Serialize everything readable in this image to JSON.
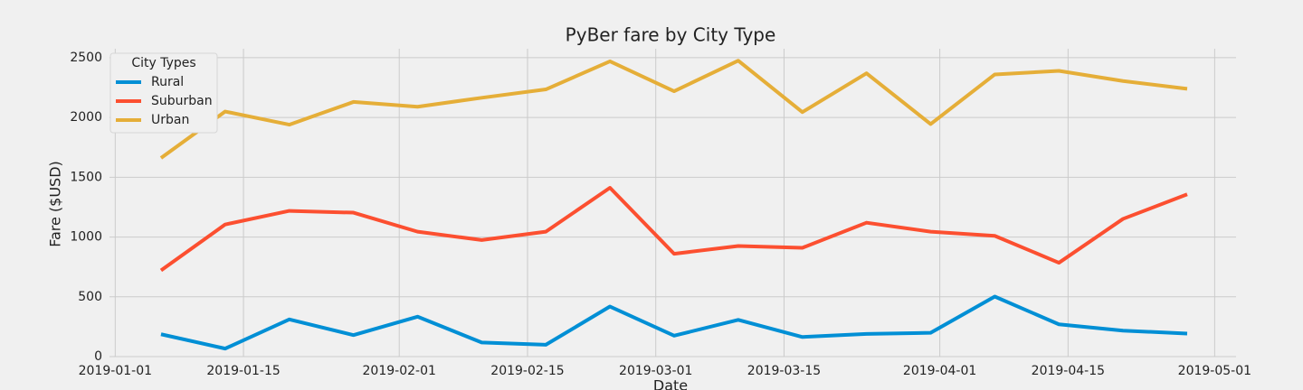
{
  "chart_data": {
    "type": "line",
    "title": "PyBer fare by City Type",
    "xlabel": "Date",
    "ylabel": "Fare ($USD)",
    "x": [
      "2019-01-06",
      "2019-01-13",
      "2019-01-20",
      "2019-01-27",
      "2019-02-03",
      "2019-02-10",
      "2019-02-17",
      "2019-02-24",
      "2019-03-03",
      "2019-03-10",
      "2019-03-17",
      "2019-03-24",
      "2019-03-31",
      "2019-04-07",
      "2019-04-14",
      "2019-04-21",
      "2019-04-28"
    ],
    "series": [
      {
        "name": "Rural",
        "color": "#008fd5",
        "values": [
          187,
          67,
          311,
          180,
          334,
          118,
          99,
          419,
          175,
          307,
          164,
          190,
          199,
          502,
          270,
          217,
          193
        ]
      },
      {
        "name": "Suburban",
        "color": "#fc4f30",
        "values": [
          721,
          1105,
          1219,
          1204,
          1045,
          975,
          1045,
          1412,
          860,
          925,
          910,
          1120,
          1045,
          1010,
          785,
          1152,
          1357
        ]
      },
      {
        "name": "Urban",
        "color": "#e5ae38",
        "values": [
          1661,
          2050,
          1940,
          2130,
          2090,
          2165,
          2235,
          2470,
          2220,
          2475,
          2045,
          2370,
          1945,
          2360,
          2390,
          2305,
          2240
        ]
      }
    ],
    "legend_title": "City Types",
    "legend": "upper left",
    "grid": true,
    "xlim": [
      "2018-12-31T09:00",
      "2019-05-03T08:00"
    ],
    "xticks": [
      "2019-01-01",
      "2019-01-15",
      "2019-02-01",
      "2019-02-15",
      "2019-03-01",
      "2019-03-15",
      "2019-04-01",
      "2019-04-15",
      "2019-05-01"
    ],
    "ylim": [
      0,
      2575
    ],
    "yticks": [
      0,
      500,
      1000,
      1500,
      2000,
      2500
    ]
  }
}
